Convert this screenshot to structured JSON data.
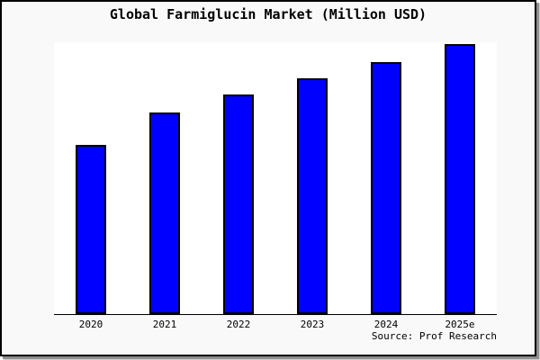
{
  "title": "Global Farmiglucin Market (Million USD)",
  "source": "Source: Prof Research",
  "colors": {
    "page_background": "#f9f9f9",
    "plot_background": "#ffffff",
    "bar_fill": "#0000ff",
    "bar_border": "#000000",
    "axis_line": "#000000",
    "frame_border": "#000000",
    "shadow": "#8f8f8f",
    "text": "#000000"
  },
  "chart_data": {
    "type": "bar",
    "title": "Global Farmiglucin Market (Million USD)",
    "categories": [
      "2020",
      "2021",
      "2022",
      "2023",
      "2024",
      "2025e"
    ],
    "values": [
      62.8,
      74.5,
      81.2,
      87.2,
      93.2,
      100
    ],
    "value_scale": "relative units; no y-axis tick labels shown in chart, values normalized so 2025e = 100",
    "xlabel": "",
    "ylabel": "",
    "ylim": [
      0,
      100.7
    ],
    "grid": false,
    "legend": "none",
    "source": "Source: Prof Research"
  }
}
